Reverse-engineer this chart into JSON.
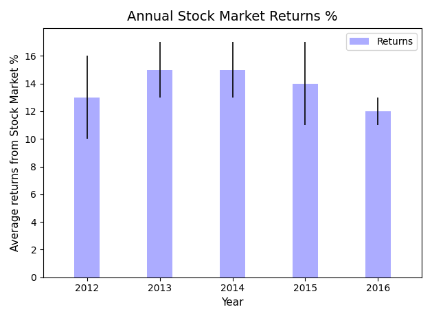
{
  "categories": [
    "2012",
    "2013",
    "2014",
    "2015",
    "2016"
  ],
  "values": [
    13,
    15,
    15,
    14,
    12
  ],
  "yerr_upper": [
    3,
    2,
    2,
    3,
    1
  ],
  "yerr_lower": [
    3,
    2,
    2,
    3,
    1
  ],
  "bar_color": "#8080ff",
  "bar_alpha": 0.65,
  "title": "Annual Stock Market Returns %",
  "xlabel": "Year",
  "ylabel": "Average returns from Stock Market %",
  "ylim": [
    0,
    18
  ],
  "yticks": [
    0,
    2,
    4,
    6,
    8,
    10,
    12,
    14,
    16
  ],
  "legend_label": "Returns",
  "title_fontsize": 14,
  "label_fontsize": 11,
  "tick_fontsize": 10,
  "legend_fontsize": 10,
  "bar_width": 0.35,
  "capsize": 0,
  "error_color": "black",
  "error_linewidth": 1.2,
  "figwidth": 6.29,
  "figheight": 4.63,
  "dpi": 100
}
